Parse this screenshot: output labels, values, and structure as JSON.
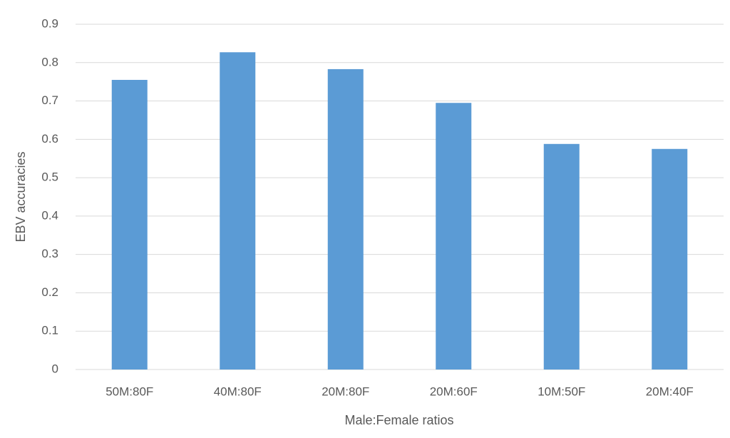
{
  "chart_data": {
    "type": "bar",
    "x_label": "Male:Female ratios",
    "y_label": "EBV accuracies",
    "categories": [
      "50M:80F",
      "40M:80F",
      "20M:80F",
      "20M:60F",
      "10M:50F",
      "20M:40F"
    ],
    "values": [
      0.755,
      0.827,
      0.783,
      0.695,
      0.588,
      0.575
    ],
    "color": "#5b9bd5",
    "ylim": [
      0,
      0.9
    ],
    "yticks": [
      0,
      0.1,
      0.2,
      0.3,
      0.4,
      0.5,
      0.6,
      0.7,
      0.8,
      0.9
    ],
    "grid": true
  }
}
